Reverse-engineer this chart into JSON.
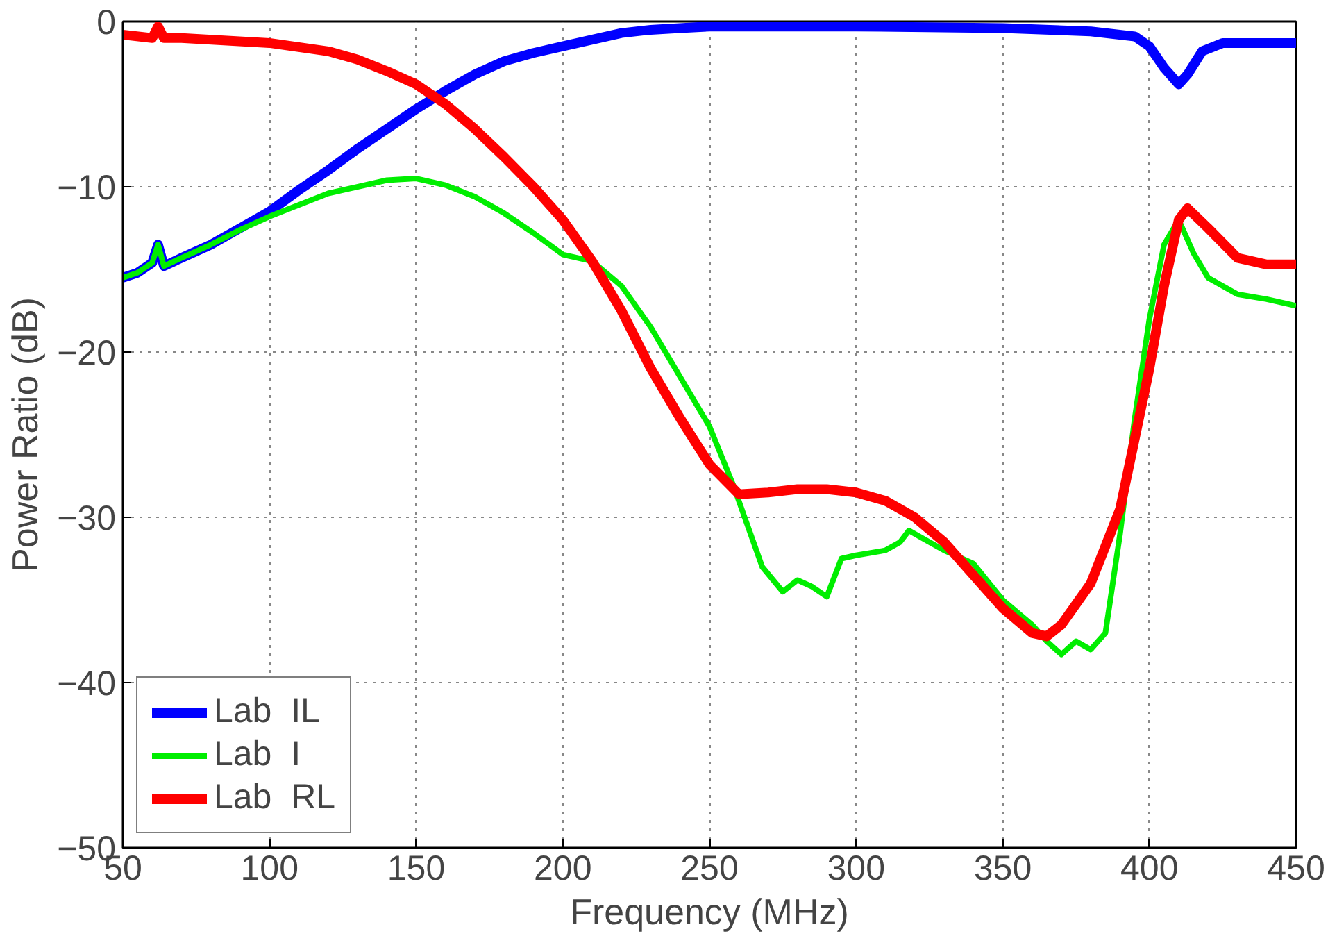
{
  "chart_data": {
    "type": "line",
    "xlabel": "Frequency (MHz)",
    "ylabel": "Power Ratio (dB)",
    "xlim": [
      50,
      450
    ],
    "ylim": [
      -50,
      0
    ],
    "xticks": [
      50,
      100,
      150,
      200,
      250,
      300,
      350,
      400,
      450
    ],
    "yticks": [
      {
        "value": -50,
        "label": "−50"
      },
      {
        "value": -40,
        "label": "−40"
      },
      {
        "value": -30,
        "label": "−30"
      },
      {
        "value": -20,
        "label": "−20"
      },
      {
        "value": -10,
        "label": "−10"
      },
      0
    ],
    "grid": true,
    "legend": "bottom left",
    "marker": "none",
    "line_style": "solid",
    "series": [
      {
        "name": "Lab  IL",
        "color": "#0000ff",
        "x": [
          50,
          55,
          60,
          62,
          64,
          70,
          80,
          90,
          100,
          110,
          120,
          130,
          140,
          150,
          160,
          170,
          180,
          190,
          200,
          210,
          220,
          230,
          240,
          250,
          300,
          350,
          380,
          395,
          400,
          405,
          410,
          413,
          418,
          425,
          450
        ],
        "values": [
          -15.5,
          -15.2,
          -14.6,
          -13.5,
          -14.8,
          -14.3,
          -13.5,
          -12.5,
          -11.5,
          -10.2,
          -9,
          -7.7,
          -6.5,
          -5.3,
          -4.2,
          -3.2,
          -2.4,
          -1.9,
          -1.5,
          -1.1,
          -0.7,
          -0.5,
          -0.4,
          -0.3,
          -0.3,
          -0.4,
          -0.6,
          -0.9,
          -1.5,
          -2.8,
          -3.8,
          -3.2,
          -1.8,
          -1.3,
          -1.3
        ]
      },
      {
        "name": "Lab  I",
        "color": "#00ee00",
        "x": [
          50,
          55,
          60,
          62,
          64,
          70,
          80,
          90,
          100,
          120,
          140,
          150,
          160,
          170,
          180,
          190,
          200,
          210,
          220,
          230,
          240,
          250,
          258,
          262,
          268,
          275,
          280,
          285,
          290,
          295,
          300,
          310,
          315,
          318,
          325,
          330,
          340,
          350,
          360,
          365,
          370,
          375,
          380,
          385,
          390,
          395,
          400,
          405,
          410,
          415,
          420,
          430,
          440,
          450
        ],
        "values": [
          -15.5,
          -15.2,
          -14.6,
          -13.5,
          -14.8,
          -14.3,
          -13.5,
          -12.6,
          -11.8,
          -10.4,
          -9.6,
          -9.5,
          -9.9,
          -10.6,
          -11.6,
          -12.8,
          -14.1,
          -14.5,
          -16,
          -18.5,
          -21.5,
          -24.5,
          -28,
          -30,
          -33,
          -34.5,
          -33.8,
          -34.2,
          -34.8,
          -32.5,
          -32.3,
          -32,
          -31.5,
          -30.8,
          -31.5,
          -32,
          -32.8,
          -35,
          -36.5,
          -37.5,
          -38.3,
          -37.5,
          -38,
          -37,
          -31,
          -24,
          -18,
          -13.5,
          -12,
          -14,
          -15.5,
          -16.5,
          -16.8,
          -17.2
        ]
      },
      {
        "name": "Lab  RL",
        "color": "#ff0000",
        "x": [
          50,
          60,
          62,
          64,
          70,
          100,
          120,
          130,
          140,
          150,
          160,
          170,
          180,
          190,
          200,
          210,
          220,
          230,
          240,
          250,
          260,
          270,
          280,
          290,
          300,
          310,
          320,
          330,
          340,
          350,
          360,
          365,
          370,
          380,
          390,
          400,
          405,
          410,
          413,
          420,
          430,
          440,
          450
        ],
        "values": [
          -0.8,
          -1,
          -0.3,
          -1,
          -1,
          -1.3,
          -1.8,
          -2.3,
          -3,
          -3.8,
          -5,
          -6.5,
          -8.2,
          -10,
          -12,
          -14.5,
          -17.5,
          -21,
          -24,
          -26.8,
          -28.6,
          -28.5,
          -28.3,
          -28.3,
          -28.5,
          -29,
          -30,
          -31.5,
          -33.5,
          -35.5,
          -37,
          -37.2,
          -36.5,
          -34,
          -29.5,
          -21,
          -16,
          -12,
          -11.3,
          -12.5,
          -14.3,
          -14.7,
          -14.7
        ]
      }
    ]
  }
}
